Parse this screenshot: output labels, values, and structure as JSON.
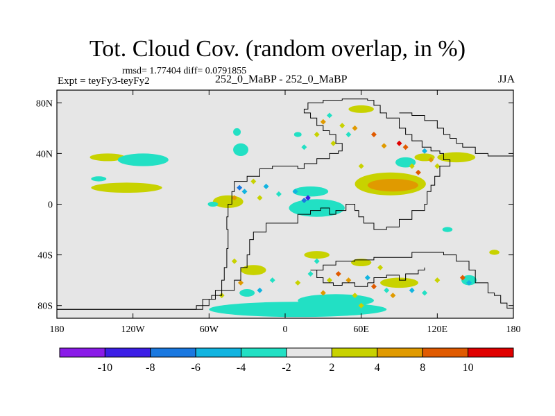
{
  "chart_data": {
    "type": "heatmap",
    "title": "Tot. Cloud Cov. (random overlap, in %)",
    "stats_line": "rmsd= 1.77404 diff= 0.0791855",
    "left_label": "Expt = teyFy3-teyFy2",
    "center_label": "252_0_MaBP - 252_0_MaBP",
    "right_label": "JJA",
    "x_range": [
      -180,
      180
    ],
    "y_range": [
      -90,
      90
    ],
    "x_ticks": [
      {
        "value": -180,
        "label": "180"
      },
      {
        "value": -120,
        "label": "120W"
      },
      {
        "value": -60,
        "label": "60W"
      },
      {
        "value": 0,
        "label": "0"
      },
      {
        "value": 60,
        "label": "60E"
      },
      {
        "value": 120,
        "label": "120E"
      },
      {
        "value": 180,
        "label": "180"
      }
    ],
    "y_ticks": [
      {
        "value": 80,
        "label": "80N"
      },
      {
        "value": 40,
        "label": "40N"
      },
      {
        "value": 0,
        "label": "0"
      },
      {
        "value": -40,
        "label": "40S"
      },
      {
        "value": -80,
        "label": "80S"
      }
    ],
    "colorbar": {
      "colors": [
        "#8a1be8",
        "#3c1ee6",
        "#1a78e0",
        "#12b4e0",
        "#22e0c4",
        "#e6e6e6",
        "#c8d200",
        "#e09a00",
        "#e05a00",
        "#e00000"
      ],
      "labels": [
        "-10",
        "-8",
        "-6",
        "-4",
        "-2",
        "2",
        "4",
        "8",
        "10"
      ]
    },
    "regions": [
      {
        "lon": -140,
        "lat": 37,
        "rx": 14,
        "ry": 3,
        "level": 2
      },
      {
        "lon": -112,
        "lat": 35,
        "rx": 20,
        "ry": 5,
        "level": -2
      },
      {
        "lon": -125,
        "lat": 13,
        "rx": 28,
        "ry": 4,
        "level": 2
      },
      {
        "lon": -147,
        "lat": 20,
        "rx": 6,
        "ry": 2,
        "level": -2
      },
      {
        "lon": -35,
        "lat": 43,
        "rx": 6,
        "ry": 5,
        "level": -2
      },
      {
        "lon": -38,
        "lat": 57,
        "rx": 3,
        "ry": 3,
        "level": -2
      },
      {
        "lon": 10,
        "lat": 55,
        "rx": 3,
        "ry": 2,
        "level": -2
      },
      {
        "lon": 25,
        "lat": -3,
        "rx": 22,
        "ry": 7,
        "level": -2
      },
      {
        "lon": 20,
        "lat": 10,
        "rx": 14,
        "ry": 4,
        "level": -2
      },
      {
        "lon": -45,
        "lat": 2,
        "rx": 12,
        "ry": 5,
        "level": 2
      },
      {
        "lon": -57,
        "lat": 0,
        "rx": 4,
        "ry": 2,
        "level": -2
      },
      {
        "lon": 83,
        "lat": 16,
        "rx": 28,
        "ry": 9,
        "level": 2
      },
      {
        "lon": 85,
        "lat": 15,
        "rx": 20,
        "ry": 5,
        "level": 4
      },
      {
        "lon": 95,
        "lat": 33,
        "rx": 8,
        "ry": 4,
        "level": -2
      },
      {
        "lon": 135,
        "lat": 37,
        "rx": 15,
        "ry": 4,
        "level": 2
      },
      {
        "lon": 110,
        "lat": 37,
        "rx": 8,
        "ry": 3,
        "level": 2
      },
      {
        "lon": 60,
        "lat": 75,
        "rx": 10,
        "ry": 3,
        "level": 2
      },
      {
        "lon": 10,
        "lat": -83,
        "rx": 70,
        "ry": 6,
        "level": -2
      },
      {
        "lon": 40,
        "lat": -76,
        "rx": 30,
        "ry": 5,
        "level": -2
      },
      {
        "lon": 145,
        "lat": -60,
        "rx": 6,
        "ry": 4,
        "level": -2
      },
      {
        "lon": 128,
        "lat": -20,
        "rx": 4,
        "ry": 2,
        "level": -2
      },
      {
        "lon": 165,
        "lat": -38,
        "rx": 4,
        "ry": 2,
        "level": 2
      },
      {
        "lon": -30,
        "lat": -70,
        "rx": 6,
        "ry": 3,
        "level": -2
      },
      {
        "lon": 90,
        "lat": -62,
        "rx": 15,
        "ry": 4,
        "level": 2
      },
      {
        "lon": 25,
        "lat": -40,
        "rx": 10,
        "ry": 3,
        "level": 2
      },
      {
        "lon": -25,
        "lat": -52,
        "rx": 10,
        "ry": 4,
        "level": 2
      },
      {
        "lon": 60,
        "lat": -46,
        "rx": 8,
        "ry": 3,
        "level": 2
      }
    ],
    "speckles": [
      {
        "lon": -32,
        "lat": 10,
        "level": -6
      },
      {
        "lon": -36,
        "lat": 13,
        "level": -8
      },
      {
        "lon": 18,
        "lat": 5,
        "level": -10
      },
      {
        "lon": 15,
        "lat": 3,
        "level": -8
      },
      {
        "lon": 8,
        "lat": 10,
        "level": -4
      },
      {
        "lon": -15,
        "lat": 14,
        "level": -4
      },
      {
        "lon": -5,
        "lat": 8,
        "level": -2
      },
      {
        "lon": 90,
        "lat": 48,
        "level": 10
      },
      {
        "lon": 95,
        "lat": 45,
        "level": 8
      },
      {
        "lon": 78,
        "lat": 46,
        "level": 4
      },
      {
        "lon": 70,
        "lat": 55,
        "level": 8
      },
      {
        "lon": 30,
        "lat": 65,
        "level": 4
      },
      {
        "lon": 35,
        "lat": 70,
        "level": -2
      },
      {
        "lon": 45,
        "lat": 62,
        "level": 2
      },
      {
        "lon": 50,
        "lat": 55,
        "level": -2
      },
      {
        "lon": 55,
        "lat": 60,
        "level": 4
      },
      {
        "lon": 38,
        "lat": 48,
        "level": 2
      },
      {
        "lon": 110,
        "lat": 42,
        "level": -4
      },
      {
        "lon": 100,
        "lat": 30,
        "level": 2
      },
      {
        "lon": 105,
        "lat": 25,
        "level": 8
      },
      {
        "lon": 120,
        "lat": 30,
        "level": 2
      },
      {
        "lon": 42,
        "lat": -55,
        "level": 8
      },
      {
        "lon": 50,
        "lat": -60,
        "level": 4
      },
      {
        "lon": 65,
        "lat": -58,
        "level": -4
      },
      {
        "lon": 70,
        "lat": -65,
        "level": 8
      },
      {
        "lon": 80,
        "lat": -68,
        "level": -2
      },
      {
        "lon": 85,
        "lat": -72,
        "level": 4
      },
      {
        "lon": 100,
        "lat": -68,
        "level": -4
      },
      {
        "lon": 140,
        "lat": -58,
        "level": 8
      },
      {
        "lon": 145,
        "lat": -62,
        "level": -6
      },
      {
        "lon": 20,
        "lat": -55,
        "level": -2
      },
      {
        "lon": 10,
        "lat": -62,
        "level": 2
      },
      {
        "lon": -10,
        "lat": -60,
        "level": -2
      },
      {
        "lon": -20,
        "lat": -68,
        "level": -4
      },
      {
        "lon": -35,
        "lat": -62,
        "level": 4
      },
      {
        "lon": -40,
        "lat": -45,
        "level": 2
      },
      {
        "lon": -50,
        "lat": -72,
        "level": 2
      },
      {
        "lon": -30,
        "lat": -52,
        "level": 2
      },
      {
        "lon": 30,
        "lat": -70,
        "level": 4
      },
      {
        "lon": 55,
        "lat": -72,
        "level": 2
      },
      {
        "lon": 120,
        "lat": -60,
        "level": 2
      },
      {
        "lon": 110,
        "lat": -70,
        "level": -2
      },
      {
        "lon": 60,
        "lat": -80,
        "level": 2
      },
      {
        "lon": 75,
        "lat": -50,
        "level": 2
      },
      {
        "lon": 25,
        "lat": -45,
        "level": -2
      },
      {
        "lon": 35,
        "lat": -60,
        "level": 2
      },
      {
        "lon": -25,
        "lat": 18,
        "level": 2
      },
      {
        "lon": -20,
        "lat": 5,
        "level": 2
      },
      {
        "lon": -40,
        "lat": 5,
        "level": 4
      },
      {
        "lon": 60,
        "lat": 30,
        "level": 2
      },
      {
        "lon": 115,
        "lat": 35,
        "level": 4
      },
      {
        "lon": 15,
        "lat": 45,
        "level": -2
      },
      {
        "lon": 25,
        "lat": 55,
        "level": 2
      }
    ],
    "coastlines": [
      [
        [
          -70,
          -83
        ],
        [
          -65,
          -80
        ],
        [
          -60,
          -75
        ],
        [
          -55,
          -68
        ],
        [
          -50,
          -60
        ],
        [
          -48,
          -50
        ],
        [
          -46,
          -35
        ],
        [
          -45,
          -20
        ],
        [
          -46,
          -10
        ],
        [
          -45,
          0
        ],
        [
          -42,
          10
        ],
        [
          -40,
          18
        ],
        [
          -30,
          22
        ],
        [
          -20,
          28
        ],
        [
          -10,
          30
        ],
        [
          0,
          30
        ],
        [
          10,
          28
        ],
        [
          15,
          32
        ],
        [
          25,
          36
        ],
        [
          35,
          40
        ],
        [
          42,
          42
        ],
        [
          45,
          48
        ],
        [
          40,
          55
        ],
        [
          35,
          58
        ],
        [
          30,
          62
        ],
        [
          25,
          68
        ],
        [
          20,
          72
        ],
        [
          15,
          75
        ],
        [
          18,
          80
        ],
        [
          30,
          82
        ],
        [
          45,
          83
        ],
        [
          55,
          83
        ],
        [
          65,
          82
        ],
        [
          70,
          78
        ],
        [
          75,
          72
        ],
        [
          80,
          68
        ],
        [
          90,
          60
        ],
        [
          95,
          55
        ],
        [
          100,
          50
        ],
        [
          108,
          45
        ],
        [
          115,
          42
        ],
        [
          122,
          40
        ],
        [
          125,
          35
        ],
        [
          130,
          30
        ],
        [
          122,
          22
        ],
        [
          118,
          15
        ],
        [
          115,
          10
        ],
        [
          112,
          0
        ],
        [
          110,
          -5
        ],
        [
          100,
          -12
        ],
        [
          90,
          -18
        ],
        [
          80,
          -20
        ],
        [
          70,
          -15
        ],
        [
          62,
          -10
        ],
        [
          58,
          -5
        ],
        [
          55,
          0
        ],
        [
          48,
          -5
        ],
        [
          40,
          -8
        ],
        [
          35,
          -3
        ],
        [
          28,
          -5
        ],
        [
          20,
          -8
        ],
        [
          10,
          -15
        ],
        [
          -5,
          -15
        ],
        [
          -15,
          -22
        ],
        [
          -25,
          -28
        ],
        [
          -28,
          -40
        ],
        [
          -30,
          -50
        ],
        [
          -35,
          -60
        ],
        [
          -40,
          -68
        ],
        [
          -50,
          -72
        ],
        [
          -58,
          -75
        ],
        [
          -65,
          -80
        ],
        [
          -70,
          -83
        ],
        [
          -180,
          -83
        ]
      ],
      [
        [
          -180,
          -83
        ],
        [
          -70,
          -83
        ]
      ],
      [
        [
          20,
          -52
        ],
        [
          30,
          -48
        ],
        [
          40,
          -45
        ],
        [
          55,
          -44
        ],
        [
          70,
          -42
        ],
        [
          85,
          -42
        ],
        [
          100,
          -38
        ],
        [
          115,
          -38
        ],
        [
          125,
          -40
        ],
        [
          135,
          -45
        ],
        [
          145,
          -52
        ],
        [
          150,
          -62
        ],
        [
          160,
          -70
        ],
        [
          165,
          -72
        ],
        [
          170,
          -72
        ],
        [
          170,
          -78
        ],
        [
          175,
          -82
        ],
        [
          180,
          -82
        ]
      ],
      [
        [
          20,
          -52
        ],
        [
          25,
          -58
        ],
        [
          30,
          -62
        ],
        [
          38,
          -64
        ],
        [
          45,
          -62
        ],
        [
          55,
          -65
        ],
        [
          65,
          -62
        ]
      ],
      [
        [
          65,
          -62
        ],
        [
          70,
          -58
        ],
        [
          80,
          -56
        ],
        [
          90,
          -60
        ],
        [
          95,
          -55
        ],
        [
          105,
          -52
        ],
        [
          110,
          -50
        ]
      ],
      [
        [
          90,
          72
        ],
        [
          100,
          70
        ],
        [
          110,
          66
        ],
        [
          120,
          60
        ],
        [
          125,
          55
        ],
        [
          130,
          52
        ],
        [
          135,
          48
        ],
        [
          140,
          45
        ],
        [
          150,
          40
        ],
        [
          160,
          38
        ],
        [
          170,
          38
        ],
        [
          180,
          38
        ]
      ]
    ]
  }
}
